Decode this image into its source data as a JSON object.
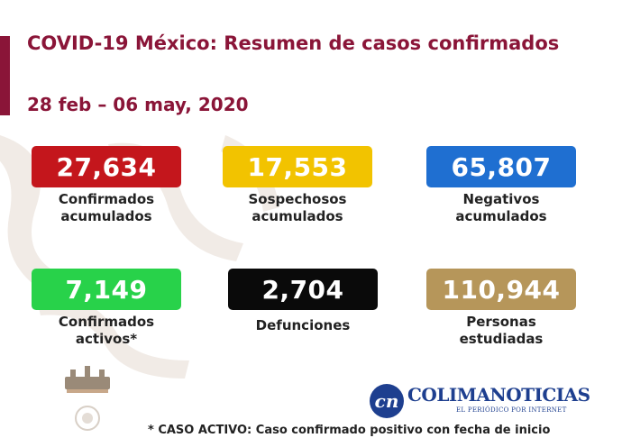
{
  "header": {
    "title": "COVID-19 México: Resumen de casos confirmados",
    "date_range": "28 feb – 06 may, 2020"
  },
  "colors": {
    "accent": "#8a1538",
    "confirmados": "#c4161c",
    "sospechosos": "#f2c300",
    "negativos": "#1f6fd1",
    "activos": "#28d24a",
    "defunciones": "#0a0a0a",
    "estudiadas": "#b6965a",
    "brand": "#1e3f8f"
  },
  "stats": {
    "confirmados": {
      "value": "27,634",
      "label_1": "Confirmados",
      "label_2": "acumulados"
    },
    "sospechosos": {
      "value": "17,553",
      "label_1": "Sospechosos",
      "label_2": "acumulados"
    },
    "negativos": {
      "value": "65,807",
      "label_1": "Negativos",
      "label_2": "acumulados"
    },
    "activos": {
      "value": "7,149",
      "label_1": "Confirmados",
      "label_2": "activos*"
    },
    "defunciones": {
      "value": "2,704",
      "label_1": "Defunciones",
      "label_2": ""
    },
    "estudiadas": {
      "value": "110,944",
      "label_1": "Personas",
      "label_2": "estudiadas"
    }
  },
  "branding": {
    "icon": "colimanoticias-logo-icon",
    "mark": "cn",
    "name": "COLIMANOTICIAS",
    "tagline": "EL PERIÓDICO POR INTERNET"
  },
  "footer": {
    "note": "* CASO ACTIVO: Caso confirmado positivo con fecha de inicio"
  }
}
